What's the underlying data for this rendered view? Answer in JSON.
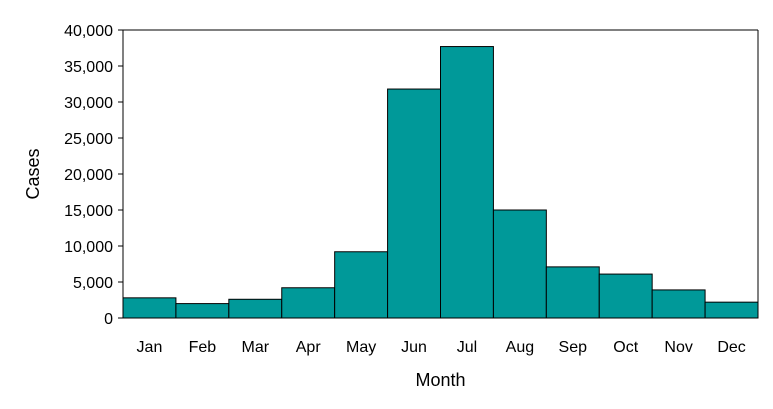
{
  "chart_data": {
    "type": "bar",
    "title": "",
    "xlabel": "Month",
    "ylabel": "Cases",
    "categories": [
      "Jan",
      "Feb",
      "Mar",
      "Apr",
      "May",
      "Jun",
      "Jul",
      "Aug",
      "Sep",
      "Oct",
      "Nov",
      "Dec"
    ],
    "values": [
      2800,
      2000,
      2600,
      4200,
      9200,
      31800,
      37700,
      15000,
      7100,
      6100,
      3900,
      2200
    ],
    "ylim": [
      0,
      40000
    ],
    "yticks": [
      0,
      5000,
      10000,
      15000,
      20000,
      25000,
      30000,
      35000,
      40000
    ],
    "ytick_labels": [
      "0",
      "5,000",
      "10,000",
      "15,000",
      "20,000",
      "25,000",
      "30,000",
      "35,000",
      "40,000"
    ],
    "grid": false,
    "legend": "none",
    "bar_color": "#009999"
  }
}
